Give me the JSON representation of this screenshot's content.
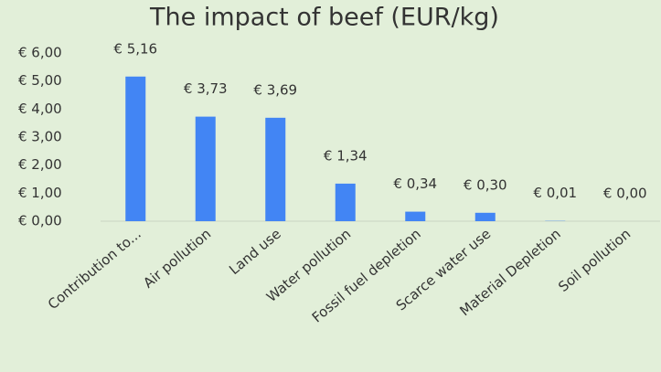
{
  "chart_data": {
    "type": "bar",
    "title": "The impact of beef (EUR/kg)",
    "categories": [
      "Contribution to...",
      "Air pollution",
      "Land use",
      "Water pollution",
      "Fossil fuel depletion",
      "Scarce water use",
      "Material Depletion",
      "Soil pollution"
    ],
    "values": [
      5.16,
      3.73,
      3.69,
      1.34,
      0.34,
      0.3,
      0.01,
      0.0
    ],
    "value_labels": [
      "€ 5,16",
      "€ 3,73",
      "€ 3,69",
      "€ 1,34",
      "€ 0,34",
      "€ 0,30",
      "€ 0,01",
      "€ 0,00"
    ],
    "color": "#4285f4",
    "ylim": [
      0,
      6
    ],
    "yticks": [
      {
        "value": 0,
        "label": "€ 0,00"
      },
      {
        "value": 1,
        "label": "€ 1,00"
      },
      {
        "value": 2,
        "label": "€ 2,00"
      },
      {
        "value": 3,
        "label": "€ 3,00"
      },
      {
        "value": 4,
        "label": "€ 4,00"
      },
      {
        "value": 5,
        "label": "€ 5,00"
      },
      {
        "value": 6,
        "label": "€ 6,00"
      }
    ],
    "grid": false
  }
}
